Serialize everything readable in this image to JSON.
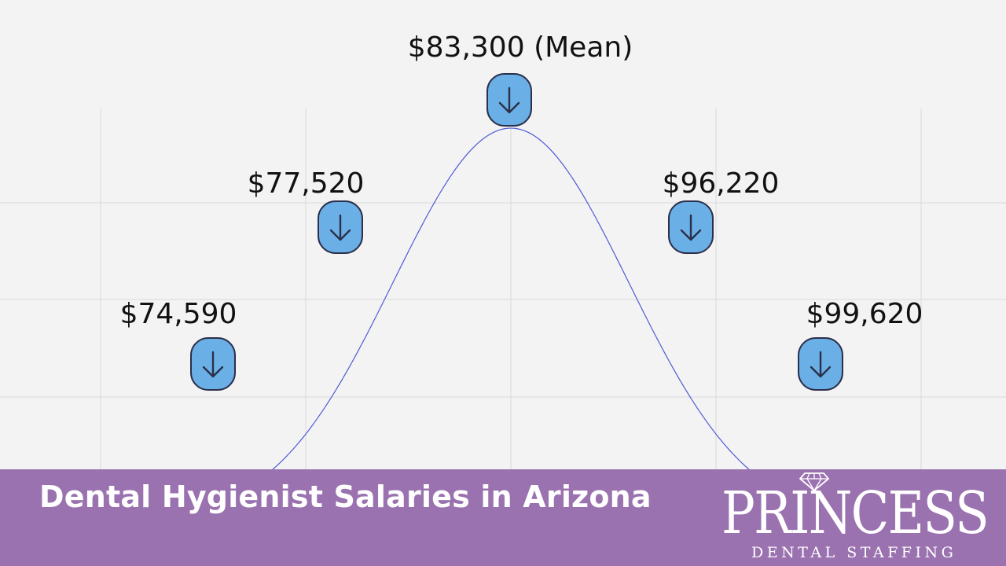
{
  "chart_data": {
    "type": "line",
    "title": "",
    "xlabel": "",
    "ylabel": "",
    "grid": true,
    "series": [
      {
        "points": [
          {
            "label": "$74,590",
            "value": 74590
          },
          {
            "label": "$77,520",
            "value": 77520
          },
          {
            "label": "$83,300 (Mean)",
            "value": 83300
          },
          {
            "label": "$96,220",
            "value": 96220
          },
          {
            "label": "$99,620",
            "value": 99620
          }
        ]
      }
    ],
    "mean": 83300,
    "line_color": "#4f5bd5",
    "marker_color": "#6ab0e6",
    "marker_icon": "arrow-down-icon"
  },
  "banner": {
    "title": "Dental Hygienist Salaries in Arizona",
    "color": "#9b72b0"
  },
  "logo": {
    "word": "PRINCESS",
    "sub": "DENTAL STAFFING",
    "icon": "diamond-icon"
  }
}
